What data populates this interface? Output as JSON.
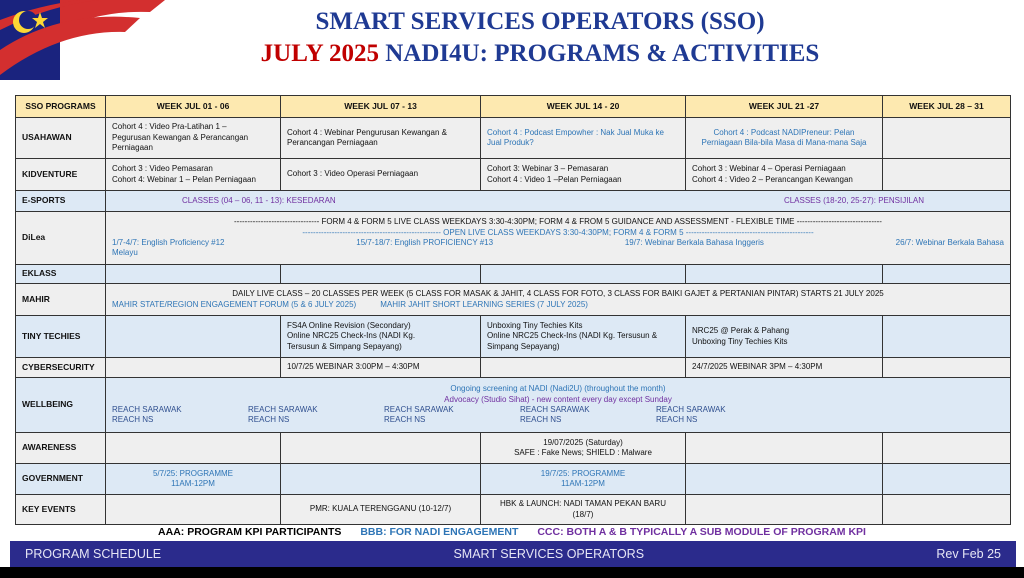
{
  "title_line1": "SMART SERVICES OPERATORS (SSO)",
  "title_line2_red": "JULY 2025",
  "title_line2": "NADI4U: PROGRAMS & ACTIVITIES",
  "colors": {
    "header": "#fde9b0",
    "blue_text": "#2e75b6",
    "purple_text": "#7030a0",
    "footer": "#2b2b8c",
    "title": "#1f3a93",
    "title_red": "#c00000"
  },
  "headers": [
    "SSO PROGRAMS",
    "WEEK JUL 01 - 06",
    "WEEK JUL 07 - 13",
    "WEEK JUL 14 - 20",
    "WEEK JUL 21 -27",
    "WEEK JUL 28 – 31"
  ],
  "rows": [
    {
      "program": "USAHAWAN",
      "tone": "g",
      "cells": [
        {
          "text": "Cohort 4 : Video Pra-Latihan 1 –\nPegurusan Kewangan & Perancangan\nPerniagaan"
        },
        {
          "text": "Cohort 4 : Webinar Pengurusan Kewangan &\nPerancangan Perniagaan"
        },
        {
          "text": "Cohort 4 : Podcast Empowher : Nak Jual Muka ke\nJual Produk?",
          "color": "blue"
        },
        {
          "text": "Cohort 4 : Podcast NADIPreneur: Pelan\nPerniagaan Bila-bila Masa di Mana-mana Saja",
          "color": "blue",
          "center": true
        },
        {
          "text": ""
        }
      ]
    },
    {
      "program": "KIDVENTURE",
      "tone": "g",
      "cells": [
        {
          "text": "Cohort 3 : Video Pemasaran\nCohort 4: Webinar 1 – Pelan Perniagaan"
        },
        {
          "text": "Cohort 3 : Video Operasi Perniagaan"
        },
        {
          "text": "Cohort 3: Webinar 3 – Pemasaran\nCohort 4 : Video 1 –Pelan Perniagaan"
        },
        {
          "text": "Cohort 3 : Webinar 4 – Operasi Perniagaan\nCohort 4 : Video 2 – Perancangan Kewangan"
        },
        {
          "text": ""
        }
      ]
    },
    {
      "program": "E-SPORTS",
      "tone": "b",
      "span": {
        "items": [
          "CLASSES (04 – 06, 11 - 13): KESEDARAN",
          "CLASSES (18-20, 25-27): PENSIJILAN"
        ],
        "color": "purple"
      }
    },
    {
      "program": "DiLea",
      "tone": "g",
      "dilea": {
        "line1": "-------------------------------- FORM 4 & FORM 5 LIVE CLASS WEEKDAYS 3:30-4:30PM; FORM 4 & FROM 5 GUIDANCE AND ASSESSMENT - FLEXIBLE TIME --------------------------------",
        "line2": "---------------------------------------------------- OPEN LIVE CLASS WEEKDAYS 3:30-4:30PM; FORM 4 & FORM 5 ------------------------------------------------",
        "items": [
          "1/7-4/7: English Proficiency #12",
          "15/7-18/7: English PROFICIENCY #13",
          "19/7: Webinar Berkala Bahasa Inggeris",
          "26/7: Webinar Berkala Bahasa"
        ],
        "tail": "Melayu"
      }
    },
    {
      "program": "EKLASS",
      "tone": "b",
      "cells": [
        {
          "text": ""
        },
        {
          "text": ""
        },
        {
          "text": ""
        },
        {
          "text": ""
        },
        {
          "text": ""
        }
      ]
    },
    {
      "program": "MAHIR",
      "tone": "g",
      "mahir": {
        "line1": "DAILY LIVE CLASS – 20 CLASSES PER WEEK (5 CLASS FOR MASAK & JAHIT, 4 CLASS FOR FOTO, 3 CLASS FOR BAIKI GAJET & PERTANIAN PINTAR) STARTS 21 JULY 2025",
        "items": [
          "MAHIR STATE/REGION ENGAGEMENT FORUM (5 & 6 JULY 2025)",
          "MAHIR JAHIT SHORT LEARNING SERIES (7 JULY 2025)"
        ]
      }
    },
    {
      "program": "TINY TECHIES",
      "tone": "b",
      "cells": [
        {
          "text": ""
        },
        {
          "text": "FS4A Online Revision (Secondary)\nOnline NRC25 Check-Ins (NADI Kg.\nTersusun & Simpang Sepayang)"
        },
        {
          "text": "Unboxing Tiny Techies Kits\nOnline NRC25 Check-Ins (NADI Kg. Tersusun &\nSimpang Sepayang)"
        },
        {
          "text": "NRC25 @ Perak & Pahang\nUnboxing Tiny Techies Kits"
        },
        {
          "text": ""
        }
      ]
    },
    {
      "program": "CYBERSECURITY",
      "tone": "g",
      "cells": [
        {
          "text": ""
        },
        {
          "text": "10/7/25 WEBINAR 3:00PM – 4:30PM"
        },
        {
          "text": ""
        },
        {
          "text": "24/7/2025 WEBINAR 3PM – 4:30PM"
        },
        {
          "text": ""
        }
      ]
    },
    {
      "program": "WELLBEING",
      "tone": "b",
      "wellbeing": {
        "line1": "Ongoing screening  at NADI (Nadi2U) (throughout the month)",
        "line2": "Advocacy (Studio Sihat) - new content every day except Sunday",
        "items": [
          "REACH SARAWAK\nREACH NS",
          "REACH SARAWAK\nREACH NS",
          "REACH SARAWAK\nREACH NS",
          "REACH SARAWAK\nREACH NS",
          "REACH SARAWAK\nREACH NS"
        ]
      }
    },
    {
      "program": "AWARENESS",
      "tone": "g",
      "cells": [
        {
          "text": ""
        },
        {
          "text": ""
        },
        {
          "text": "19/07/2025 (Saturday)\nSAFE : Fake News; SHIELD : Malware",
          "center": true
        },
        {
          "text": ""
        },
        {
          "text": ""
        }
      ]
    },
    {
      "program": "GOVERNMENT",
      "tone": "b",
      "cells": [
        {
          "text": "5/7/25: PROGRAMME\n11AM-12PM",
          "color": "blue",
          "center": true
        },
        {
          "text": ""
        },
        {
          "text": "19/7/25: PROGRAMME\n11AM-12PM",
          "color": "blue",
          "center": true
        },
        {
          "text": ""
        },
        {
          "text": ""
        }
      ]
    },
    {
      "program": "KEY EVENTS",
      "tone": "g",
      "cells": [
        {
          "text": ""
        },
        {
          "text": "PMR: KUALA TERENGGANU (10-12/7)",
          "center": true
        },
        {
          "text": "HBK & LAUNCH: NADI TAMAN PEKAN BARU\n(18/7)",
          "center": true
        },
        {
          "text": ""
        },
        {
          "text": ""
        }
      ]
    }
  ],
  "legend": {
    "aaa": "AAA: PROGRAM KPI PARTICIPANTS",
    "bbb": "BBB:  FOR NADI ENGAGEMENT",
    "ccc": "CCC:  BOTH  A & B  TYPICALLY A SUB MODULE OF PROGRAM KPI"
  },
  "footer": {
    "left": "PROGRAM SCHEDULE",
    "center": "SMART SERVICES OPERATORS",
    "right": "Rev  Feb 25"
  }
}
